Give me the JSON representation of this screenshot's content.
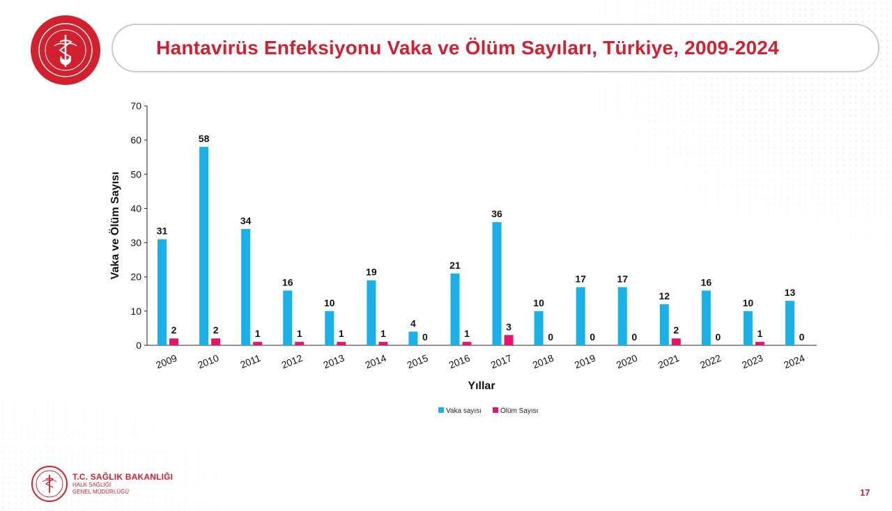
{
  "slide": {
    "title": "Hantavirüs Enfeksiyonu Vaka ve Ölüm Sayıları, Türkiye, 2009-2024",
    "page_number": "17",
    "accent_color": "#d3202e"
  },
  "footer": {
    "org_name": "T.C. SAĞLIK BAKANLIĞI",
    "org_sub1": "HALK SAĞLIĞI",
    "org_sub2": "GENEL MÜDÜRLÜĞÜ"
  },
  "logos": {
    "header_icon": "ministry-seal-icon",
    "footer_icon": "ministry-seal-icon"
  },
  "chart_data": {
    "type": "bar",
    "categories": [
      "2009",
      "2010",
      "2011",
      "2012",
      "2013",
      "2014",
      "2015",
      "2016",
      "2017",
      "2018",
      "2019",
      "2020",
      "2021",
      "2022",
      "2023",
      "2024"
    ],
    "series": [
      {
        "name": "Vaka sayısı",
        "color": "#1ab0e8",
        "values": [
          31,
          58,
          34,
          16,
          10,
          19,
          4,
          21,
          36,
          10,
          17,
          17,
          12,
          16,
          10,
          13
        ]
      },
      {
        "name": "Ölüm Sayısı",
        "color": "#e8146c",
        "values": [
          2,
          2,
          1,
          1,
          1,
          1,
          0,
          1,
          3,
          0,
          0,
          0,
          2,
          0,
          1,
          0
        ]
      }
    ],
    "xlabel": "Yıllar",
    "ylabel": "Vaka ve Ölüm Sayısı",
    "ylim": [
      0,
      70
    ],
    "yticks": [
      0,
      10,
      20,
      30,
      40,
      50,
      60,
      70
    ],
    "legend_position": "bottom",
    "grid": false
  }
}
